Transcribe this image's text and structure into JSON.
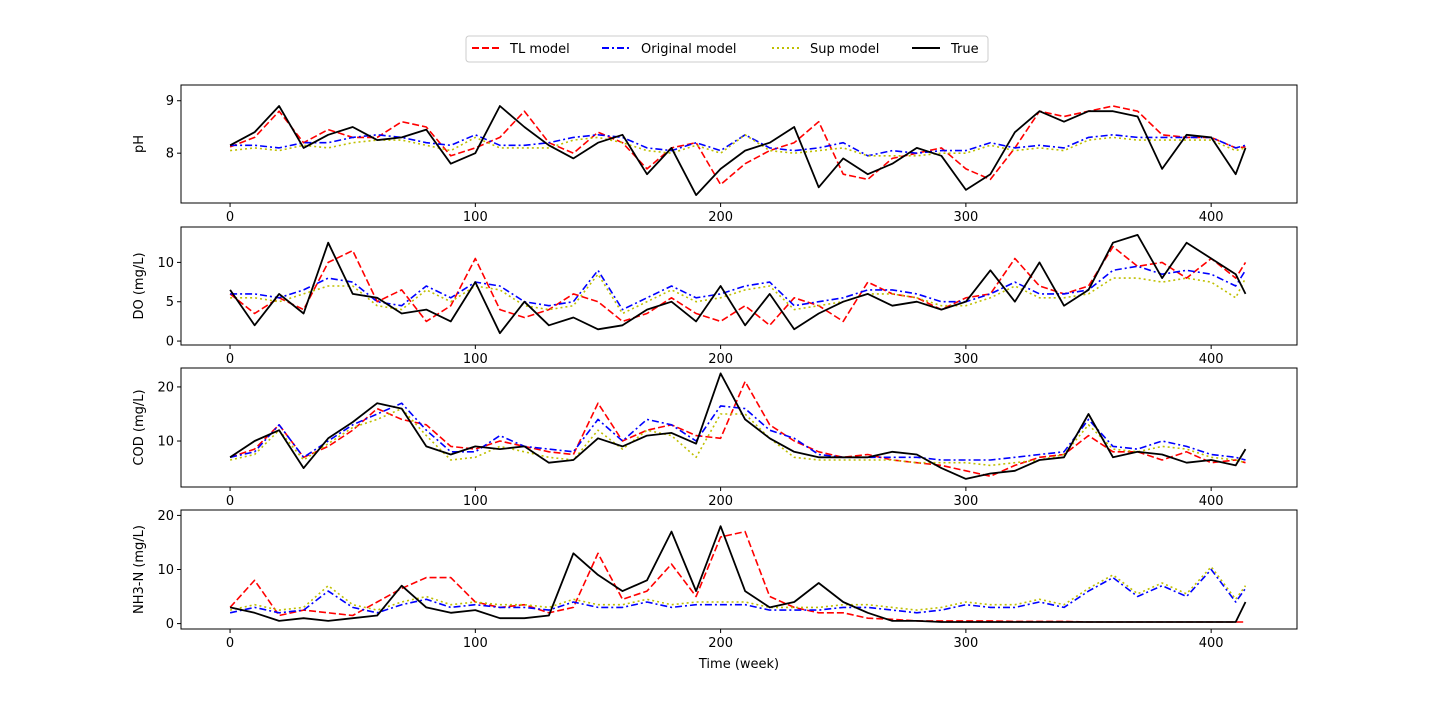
{
  "legend": {
    "entries": [
      {
        "label": "TL model",
        "color": "#ff0000",
        "dash": "dashed"
      },
      {
        "label": "Original model",
        "color": "#0000ff",
        "dash": "dashdot"
      },
      {
        "label": "Sup model",
        "color": "#bfbf00",
        "dash": "dotted"
      },
      {
        "label": "True",
        "color": "#000000",
        "dash": "solid"
      }
    ]
  },
  "chart_data": [
    {
      "type": "line",
      "ylabel": "pH",
      "xlabel": "",
      "xlim": [
        -20,
        435
      ],
      "ylim": [
        7.05,
        9.3
      ],
      "xticks": [
        0,
        100,
        200,
        300,
        400
      ],
      "yticks": [
        8,
        9
      ],
      "ytick_labels": [
        "8",
        "9"
      ],
      "x": [
        0,
        10,
        20,
        30,
        40,
        50,
        60,
        70,
        80,
        90,
        100,
        110,
        120,
        130,
        140,
        150,
        160,
        170,
        180,
        190,
        200,
        210,
        220,
        230,
        240,
        250,
        260,
        270,
        280,
        290,
        300,
        310,
        320,
        330,
        340,
        350,
        360,
        370,
        380,
        390,
        400,
        410,
        414
      ],
      "series": [
        {
          "name": "TL model",
          "values": [
            8.12,
            8.3,
            8.8,
            8.2,
            8.45,
            8.3,
            8.3,
            8.6,
            8.5,
            7.95,
            8.1,
            8.3,
            8.8,
            8.2,
            8.0,
            8.4,
            8.2,
            7.7,
            8.1,
            8.2,
            7.4,
            7.8,
            8.05,
            8.2,
            8.6,
            7.6,
            7.5,
            7.9,
            8.0,
            8.1,
            7.7,
            7.5,
            8.1,
            8.8,
            8.7,
            8.8,
            8.9,
            8.8,
            8.35,
            8.3,
            8.3,
            8.1,
            8.12
          ]
        },
        {
          "name": "Original model",
          "values": [
            8.15,
            8.15,
            8.1,
            8.2,
            8.2,
            8.3,
            8.35,
            8.3,
            8.2,
            8.15,
            8.35,
            8.15,
            8.15,
            8.2,
            8.3,
            8.35,
            8.3,
            8.1,
            8.05,
            8.2,
            8.05,
            8.35,
            8.1,
            8.05,
            8.1,
            8.2,
            7.95,
            8.05,
            8.0,
            8.05,
            8.05,
            8.2,
            8.1,
            8.15,
            8.1,
            8.3,
            8.35,
            8.3,
            8.3,
            8.3,
            8.3,
            8.1,
            8.15
          ]
        },
        {
          "name": "Sup model",
          "values": [
            8.05,
            8.1,
            8.05,
            8.15,
            8.1,
            8.2,
            8.25,
            8.25,
            8.15,
            8.05,
            8.3,
            8.1,
            8.1,
            8.1,
            8.25,
            8.3,
            8.2,
            8.05,
            8.0,
            8.15,
            8.0,
            8.35,
            8.05,
            8.0,
            8.05,
            8.1,
            7.95,
            7.95,
            7.95,
            8.0,
            8.0,
            8.15,
            8.05,
            8.1,
            8.05,
            8.25,
            8.3,
            8.25,
            8.25,
            8.25,
            8.25,
            8.05,
            8.1
          ]
        },
        {
          "name": "True",
          "values": [
            8.15,
            8.4,
            8.9,
            8.1,
            8.35,
            8.5,
            8.25,
            8.3,
            8.45,
            7.8,
            8.0,
            8.9,
            8.5,
            8.15,
            7.9,
            8.2,
            8.35,
            7.6,
            8.1,
            7.2,
            7.7,
            8.05,
            8.2,
            8.5,
            7.35,
            7.9,
            7.6,
            7.8,
            8.1,
            7.95,
            7.3,
            7.6,
            8.4,
            8.8,
            8.6,
            8.8,
            8.8,
            8.7,
            7.7,
            8.35,
            8.3,
            7.6,
            8.1
          ]
        }
      ]
    },
    {
      "type": "line",
      "ylabel": "DO (mg/L)",
      "xlabel": "",
      "xlim": [
        -20,
        435
      ],
      "ylim": [
        -0.5,
        14.5
      ],
      "xticks": [
        0,
        100,
        200,
        300,
        400
      ],
      "yticks": [
        0,
        5,
        10
      ],
      "ytick_labels": [
        "0",
        "5",
        "10"
      ],
      "x": [
        0,
        10,
        20,
        30,
        40,
        50,
        60,
        70,
        80,
        90,
        100,
        110,
        120,
        130,
        140,
        150,
        160,
        170,
        180,
        190,
        200,
        210,
        220,
        230,
        240,
        250,
        260,
        270,
        280,
        290,
        300,
        310,
        320,
        330,
        340,
        350,
        360,
        370,
        380,
        390,
        400,
        410,
        414
      ],
      "series": [
        {
          "name": "TL model",
          "values": [
            6.0,
            3.5,
            5.5,
            4.0,
            10.0,
            11.5,
            5.0,
            6.5,
            2.5,
            4.5,
            10.5,
            4.0,
            3.0,
            4.0,
            6.0,
            5.0,
            2.5,
            3.5,
            5.5,
            3.5,
            2.5,
            4.5,
            2.0,
            5.5,
            4.5,
            2.5,
            7.5,
            6.0,
            5.5,
            4.0,
            5.5,
            6.0,
            10.5,
            7.0,
            6.0,
            7.0,
            12.0,
            9.5,
            10.0,
            8.0,
            10.5,
            8.0,
            10.0
          ]
        },
        {
          "name": "Original model",
          "values": [
            6.0,
            6.0,
            5.5,
            6.5,
            8.0,
            7.5,
            5.0,
            4.5,
            7.0,
            5.5,
            7.5,
            7.0,
            5.0,
            4.5,
            5.0,
            9.0,
            4.0,
            5.5,
            7.0,
            5.5,
            6.0,
            7.0,
            7.5,
            4.5,
            5.0,
            5.5,
            6.5,
            6.5,
            6.0,
            5.0,
            5.0,
            6.0,
            7.5,
            6.0,
            6.0,
            6.5,
            9.0,
            9.5,
            8.5,
            9.0,
            8.5,
            7.0,
            9.0
          ]
        },
        {
          "name": "Sup model",
          "values": [
            5.5,
            5.5,
            5.0,
            6.0,
            7.0,
            7.0,
            4.5,
            4.0,
            6.5,
            5.0,
            7.0,
            6.5,
            4.5,
            4.0,
            4.5,
            8.5,
            3.5,
            5.0,
            6.5,
            5.0,
            5.5,
            6.5,
            7.0,
            4.0,
            4.5,
            5.0,
            6.0,
            6.0,
            5.5,
            4.5,
            4.5,
            5.5,
            7.0,
            5.5,
            5.5,
            6.0,
            8.0,
            8.0,
            7.5,
            8.0,
            7.5,
            5.5,
            8.0
          ]
        },
        {
          "name": "True",
          "values": [
            6.5,
            2.0,
            6.0,
            3.5,
            12.5,
            6.0,
            5.5,
            3.5,
            4.0,
            2.5,
            7.5,
            1.0,
            5.0,
            2.0,
            3.0,
            1.5,
            2.0,
            4.0,
            5.0,
            2.5,
            7.0,
            2.0,
            6.0,
            1.5,
            3.5,
            5.0,
            6.0,
            4.5,
            5.0,
            4.0,
            5.0,
            9.0,
            5.0,
            10.0,
            4.5,
            6.5,
            12.5,
            13.5,
            8.0,
            12.5,
            10.5,
            8.5,
            6.0
          ]
        }
      ]
    },
    {
      "type": "line",
      "ylabel": "COD (mg/L)",
      "xlabel": "",
      "xlim": [
        -20,
        435
      ],
      "ylim": [
        1.5,
        23.5
      ],
      "xticks": [
        0,
        100,
        200,
        300,
        400
      ],
      "yticks": [
        10,
        20
      ],
      "ytick_labels": [
        "10",
        "20"
      ],
      "x": [
        0,
        10,
        20,
        30,
        40,
        50,
        60,
        70,
        80,
        90,
        100,
        110,
        120,
        130,
        140,
        150,
        160,
        170,
        180,
        190,
        200,
        210,
        220,
        230,
        240,
        250,
        260,
        270,
        280,
        290,
        300,
        310,
        320,
        330,
        340,
        350,
        360,
        370,
        380,
        390,
        400,
        410,
        414
      ],
      "series": [
        {
          "name": "TL model",
          "values": [
            7.0,
            8.5,
            13.0,
            7.0,
            9.0,
            12.0,
            16.0,
            14.0,
            13.0,
            9.0,
            8.5,
            10.0,
            9.0,
            8.0,
            7.5,
            17.0,
            10.0,
            12.0,
            13.0,
            11.0,
            10.5,
            21.0,
            13.0,
            10.0,
            8.0,
            7.0,
            7.5,
            6.5,
            6.0,
            5.5,
            4.5,
            3.5,
            5.5,
            7.0,
            7.5,
            11.0,
            8.0,
            8.0,
            6.5,
            8.0,
            6.0,
            6.5,
            6.0
          ]
        },
        {
          "name": "Original model",
          "values": [
            7.0,
            8.0,
            13.0,
            7.0,
            10.0,
            13.0,
            15.0,
            17.0,
            12.0,
            8.0,
            8.0,
            11.0,
            9.0,
            8.5,
            8.0,
            14.0,
            10.0,
            14.0,
            13.0,
            10.0,
            16.5,
            16.0,
            12.0,
            10.5,
            7.5,
            7.0,
            7.0,
            7.0,
            7.0,
            6.5,
            6.5,
            6.5,
            7.0,
            7.5,
            8.0,
            14.0,
            9.0,
            8.5,
            10.0,
            9.0,
            7.5,
            7.0,
            6.5
          ]
        },
        {
          "name": "Sup model",
          "values": [
            6.5,
            7.5,
            12.0,
            6.5,
            9.5,
            12.5,
            14.0,
            16.0,
            11.0,
            6.5,
            7.0,
            9.0,
            8.0,
            7.0,
            6.5,
            12.0,
            8.5,
            12.0,
            11.0,
            7.0,
            15.0,
            15.0,
            10.5,
            7.0,
            6.5,
            6.5,
            6.5,
            6.5,
            6.0,
            6.0,
            6.0,
            5.5,
            6.0,
            6.5,
            7.5,
            13.0,
            8.5,
            8.0,
            9.0,
            8.5,
            7.0,
            6.5,
            6.0
          ]
        },
        {
          "name": "True",
          "values": [
            7.0,
            10.0,
            12.0,
            5.0,
            10.5,
            13.5,
            17.0,
            16.0,
            9.0,
            7.5,
            9.0,
            8.5,
            9.0,
            6.0,
            6.5,
            10.5,
            9.0,
            11.0,
            11.5,
            9.5,
            22.5,
            14.0,
            10.5,
            8.0,
            7.0,
            7.0,
            7.0,
            8.0,
            7.5,
            5.0,
            3.0,
            4.0,
            4.5,
            6.5,
            7.0,
            15.0,
            7.0,
            8.0,
            7.5,
            6.0,
            6.5,
            5.5,
            8.5
          ]
        }
      ]
    },
    {
      "type": "line",
      "ylabel": "NH3-N (mg/L)",
      "xlabel": "Time (week)",
      "xlim": [
        -20,
        435
      ],
      "ylim": [
        -1,
        21
      ],
      "xticks": [
        0,
        100,
        200,
        300,
        400
      ],
      "yticks": [
        0,
        10,
        20
      ],
      "ytick_labels": [
        "0",
        "10",
        "20"
      ],
      "x": [
        0,
        10,
        20,
        30,
        40,
        50,
        60,
        70,
        80,
        90,
        100,
        110,
        120,
        130,
        140,
        150,
        160,
        170,
        180,
        190,
        200,
        210,
        220,
        230,
        240,
        250,
        260,
        270,
        280,
        290,
        300,
        310,
        320,
        330,
        340,
        350,
        360,
        370,
        380,
        390,
        400,
        410,
        414
      ],
      "series": [
        {
          "name": "TL model",
          "values": [
            3.0,
            8.0,
            1.5,
            2.5,
            2.0,
            1.5,
            4.0,
            6.5,
            8.5,
            8.5,
            4.0,
            3.0,
            3.5,
            2.0,
            3.0,
            13.0,
            4.5,
            6.0,
            11.0,
            5.0,
            16.0,
            17.0,
            5.0,
            3.0,
            2.0,
            2.0,
            1.0,
            0.8,
            0.5,
            0.5,
            0.5,
            0.5,
            0.4,
            0.4,
            0.4,
            0.3,
            0.3,
            0.3,
            0.3,
            0.3,
            0.3,
            0.3,
            0.3
          ]
        },
        {
          "name": "Original model",
          "values": [
            2.0,
            3.0,
            2.0,
            2.5,
            6.0,
            3.0,
            2.0,
            3.5,
            4.5,
            3.0,
            3.5,
            3.0,
            3.0,
            2.5,
            4.0,
            3.0,
            3.0,
            4.0,
            3.0,
            3.5,
            3.5,
            3.5,
            2.5,
            2.5,
            2.5,
            3.0,
            3.0,
            2.5,
            2.0,
            2.5,
            3.5,
            3.0,
            3.0,
            4.0,
            3.0,
            6.0,
            8.5,
            5.0,
            7.0,
            5.0,
            10.0,
            4.0,
            6.5
          ]
        },
        {
          "name": "Sup model",
          "values": [
            2.5,
            3.5,
            2.5,
            3.0,
            7.0,
            3.5,
            2.5,
            4.0,
            5.0,
            3.5,
            4.0,
            3.5,
            3.5,
            3.0,
            4.5,
            3.5,
            3.5,
            4.5,
            3.5,
            4.0,
            4.0,
            4.0,
            3.0,
            3.0,
            3.0,
            3.5,
            3.5,
            3.0,
            2.5,
            3.0,
            4.0,
            3.5,
            3.5,
            4.5,
            3.5,
            6.5,
            9.0,
            5.5,
            7.5,
            5.5,
            10.5,
            4.5,
            7.0
          ]
        },
        {
          "name": "True",
          "values": [
            3.0,
            2.0,
            0.5,
            1.0,
            0.5,
            1.0,
            1.5,
            7.0,
            3.0,
            2.0,
            2.5,
            1.0,
            1.0,
            1.5,
            13.0,
            9.0,
            6.0,
            8.0,
            17.0,
            6.0,
            18.0,
            6.0,
            3.0,
            4.0,
            7.5,
            4.0,
            2.0,
            0.5,
            0.5,
            0.3,
            0.3,
            0.3,
            0.3,
            0.3,
            0.3,
            0.3,
            0.3,
            0.3,
            0.3,
            0.3,
            0.3,
            0.3,
            4.0
          ]
        }
      ]
    }
  ]
}
